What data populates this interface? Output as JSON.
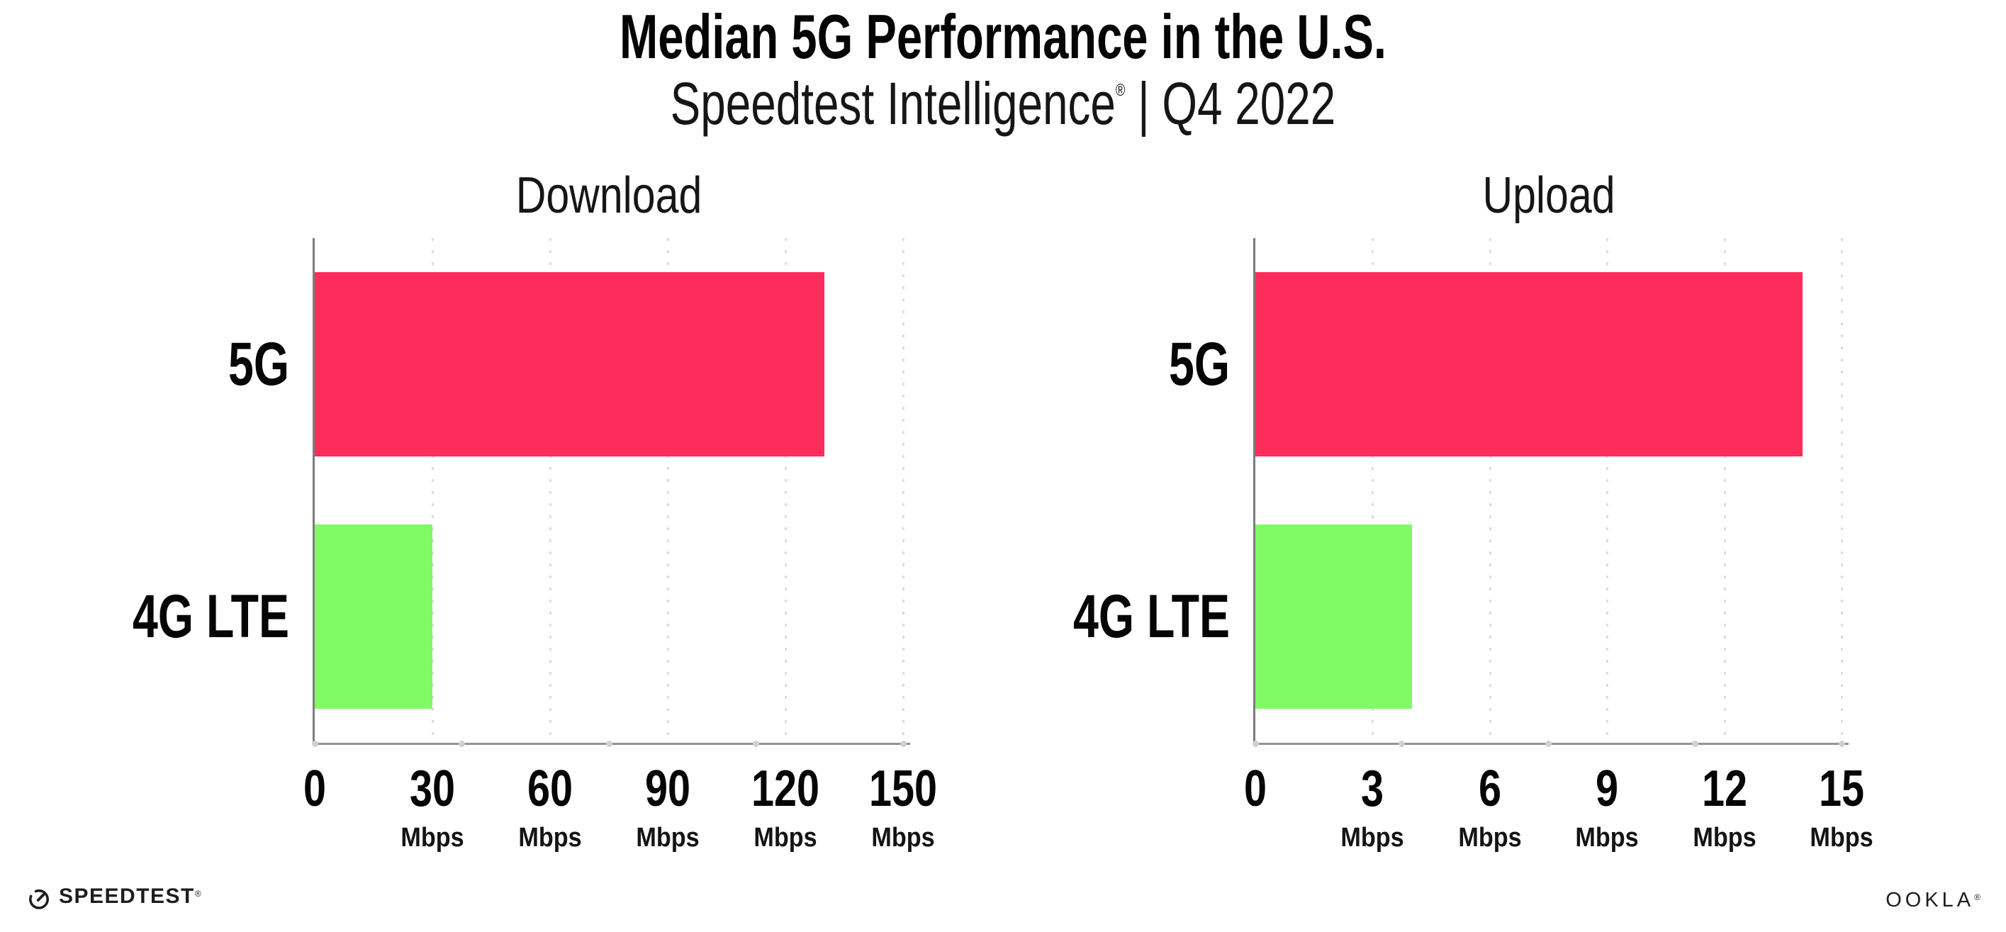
{
  "header": {
    "title": "Median 5G Performance in the U.S.",
    "subtitle_product": "Speedtest Intelligence",
    "subtitle_reg": "®",
    "subtitle_period": " | Q4 2022"
  },
  "chart_data": [
    {
      "type": "bar",
      "orientation": "horizontal",
      "title": "Download",
      "categories": [
        "5G",
        "4G LTE"
      ],
      "values": [
        130,
        30
      ],
      "unit": "Mbps",
      "xlim": [
        0,
        150
      ],
      "xticks": [
        0,
        30,
        60,
        90,
        120,
        150
      ],
      "bar_colors": [
        "#fc2d5a",
        "#80fa66"
      ],
      "grid": "vertical-dotted",
      "legend": "none"
    },
    {
      "type": "bar",
      "orientation": "horizontal",
      "title": "Upload",
      "categories": [
        "5G",
        "4G LTE"
      ],
      "values": [
        14,
        4
      ],
      "unit": "Mbps",
      "xlim": [
        0,
        15
      ],
      "xticks": [
        0,
        3,
        6,
        9,
        12,
        15
      ],
      "bar_colors": [
        "#fc2d5a",
        "#80fa66"
      ],
      "grid": "vertical-dotted",
      "legend": "none"
    }
  ],
  "footer": {
    "speedtest_label": "SPEEDTEST",
    "speedtest_mark": "®",
    "ookla_label": "OOKLA",
    "ookla_mark": "®"
  },
  "colors": {
    "bar_5g": "#fc2d5a",
    "bar_4g_lte": "#80fa66",
    "axis": "#949494",
    "gridline": "#dcdce6",
    "text": "#0a0a0a"
  }
}
